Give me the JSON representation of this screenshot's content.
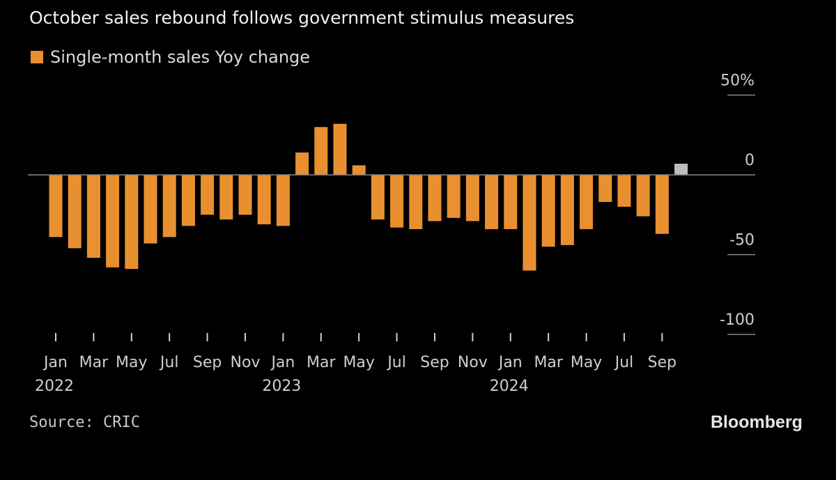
{
  "subtitle": "October sales rebound follows government stimulus measures",
  "legend": {
    "label": "Single-month sales Yoy change",
    "swatch_color": "#e8902f"
  },
  "source": "Source: CRIC",
  "brand": "Bloomberg",
  "colors": {
    "bar": "#e8902f",
    "highlight": "#bdbdbd",
    "zero_line": "#888888",
    "tick": "#cfcfcf",
    "gridline": "#888888"
  },
  "chart_data": {
    "type": "bar",
    "title": "October sales rebound follows government stimulus measures",
    "series_name": "Single-month sales Yoy change",
    "y_unit": "%",
    "ylim": [
      -100,
      50
    ],
    "y_ticks": [
      {
        "value": 50,
        "label": "50%"
      },
      {
        "value": 0,
        "label": "0"
      },
      {
        "value": -50,
        "label": "-50"
      },
      {
        "value": -100,
        "label": "-100"
      }
    ],
    "x": [
      "2022-01",
      "2022-02",
      "2022-03",
      "2022-04",
      "2022-05",
      "2022-06",
      "2022-07",
      "2022-08",
      "2022-09",
      "2022-10",
      "2022-11",
      "2022-12",
      "2023-01",
      "2023-02",
      "2023-03",
      "2023-04",
      "2023-05",
      "2023-06",
      "2023-07",
      "2023-08",
      "2023-09",
      "2023-10",
      "2023-11",
      "2023-12",
      "2024-01",
      "2024-02",
      "2024-03",
      "2024-04",
      "2024-05",
      "2024-06",
      "2024-07",
      "2024-08",
      "2024-09",
      "2024-10"
    ],
    "values": [
      -39,
      -46,
      -52,
      -58,
      -59,
      -43,
      -39,
      -32,
      -25,
      -28,
      -25,
      -31,
      -32,
      14,
      30,
      32,
      6,
      -28,
      -33,
      -34,
      -29,
      -27,
      -29,
      -34,
      -34,
      -60,
      -45,
      -44,
      -34,
      -17,
      -20,
      -26,
      -37,
      7
    ],
    "highlight_index": 33,
    "x_tick_labels": [
      {
        "index": 0,
        "month": "Jan",
        "year": "2022"
      },
      {
        "index": 2,
        "month": "Mar",
        "year": ""
      },
      {
        "index": 4,
        "month": "May",
        "year": ""
      },
      {
        "index": 6,
        "month": "Jul",
        "year": ""
      },
      {
        "index": 8,
        "month": "Sep",
        "year": ""
      },
      {
        "index": 10,
        "month": "Nov",
        "year": ""
      },
      {
        "index": 12,
        "month": "Jan",
        "year": "2023"
      },
      {
        "index": 14,
        "month": "Mar",
        "year": ""
      },
      {
        "index": 16,
        "month": "May",
        "year": ""
      },
      {
        "index": 18,
        "month": "Jul",
        "year": ""
      },
      {
        "index": 20,
        "month": "Sep",
        "year": ""
      },
      {
        "index": 22,
        "month": "Nov",
        "year": ""
      },
      {
        "index": 24,
        "month": "Jan",
        "year": "2024"
      },
      {
        "index": 26,
        "month": "Mar",
        "year": ""
      },
      {
        "index": 28,
        "month": "May",
        "year": ""
      },
      {
        "index": 30,
        "month": "Jul",
        "year": ""
      },
      {
        "index": 32,
        "month": "Sep",
        "year": ""
      }
    ],
    "grid": false,
    "legend_position": "top-left"
  }
}
